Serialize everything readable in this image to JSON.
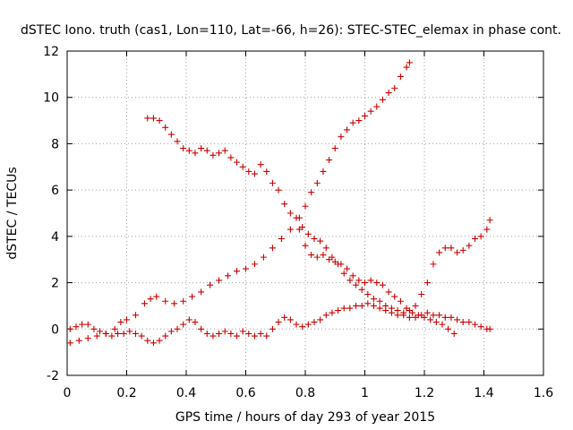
{
  "chart_data": {
    "type": "scatter",
    "title": "dSTEC Iono. truth (cas1, Lon=110, Lat=-66, h=26): STEC-STEC_elemax in phase cont.",
    "xlabel": "GPS time / hours of day 293 of year 2015",
    "ylabel": "dSTEC  / TECUs",
    "xlim": [
      0,
      1.6
    ],
    "ylim": [
      -2,
      12
    ],
    "xticks": [
      "0",
      "0.2",
      "0.4",
      "0.6",
      "0.8",
      "1",
      "1.2",
      "1.4",
      "1.6"
    ],
    "yticks": [
      "-2",
      "0",
      "2",
      "4",
      "6",
      "8",
      "10",
      "12"
    ],
    "grid": true,
    "marker": "plus",
    "color": "#cc0000",
    "series": [
      {
        "x": [
          0.01,
          0.04,
          0.07,
          0.1,
          0.13,
          0.16,
          0.18,
          0.2,
          0.23,
          0.26,
          0.28,
          0.3,
          0.33,
          0.36,
          0.39,
          0.42,
          0.45,
          0.48,
          0.51,
          0.54,
          0.57,
          0.6,
          0.63,
          0.66,
          0.69,
          0.72,
          0.75,
          0.78,
          0.8,
          0.82,
          0.84,
          0.86,
          0.88,
          0.9,
          0.92,
          0.94,
          0.96,
          0.98,
          1.0,
          1.02,
          1.04,
          1.06,
          1.08,
          1.1,
          1.12,
          1.14,
          1.15
        ],
        "y": [
          -0.6,
          -0.5,
          -0.4,
          -0.3,
          -0.2,
          0.0,
          0.3,
          0.4,
          0.6,
          1.1,
          1.3,
          1.4,
          1.2,
          1.1,
          1.2,
          1.4,
          1.6,
          1.9,
          2.1,
          2.3,
          2.5,
          2.6,
          2.8,
          3.1,
          3.5,
          3.9,
          4.3,
          4.8,
          5.3,
          5.9,
          6.3,
          6.8,
          7.3,
          7.8,
          8.3,
          8.6,
          8.9,
          9.0,
          9.2,
          9.4,
          9.6,
          9.9,
          10.2,
          10.4,
          10.9,
          11.3,
          11.5
        ]
      },
      {
        "x": [
          0.27,
          0.29,
          0.31,
          0.33,
          0.35,
          0.37,
          0.39,
          0.41,
          0.43,
          0.45,
          0.47,
          0.49,
          0.51,
          0.53,
          0.55,
          0.57,
          0.59,
          0.61,
          0.63,
          0.65,
          0.67,
          0.69,
          0.71,
          0.73,
          0.75,
          0.77,
          0.79,
          0.81,
          0.83,
          0.85,
          0.87,
          0.89,
          0.91,
          0.93,
          0.95,
          0.97,
          0.99,
          1.01,
          1.03,
          1.05,
          1.07,
          1.09,
          1.11,
          1.13,
          1.15,
          1.17,
          1.19,
          1.21,
          1.23,
          1.25,
          1.27,
          1.29,
          1.31,
          1.33,
          1.35,
          1.37,
          1.39,
          1.41,
          1.42
        ],
        "y": [
          9.1,
          9.1,
          9.0,
          8.7,
          8.4,
          8.1,
          7.8,
          7.7,
          7.6,
          7.8,
          7.7,
          7.5,
          7.6,
          7.7,
          7.4,
          7.2,
          7.0,
          6.8,
          6.7,
          7.1,
          6.8,
          6.3,
          6.0,
          5.4,
          5.0,
          4.8,
          4.4,
          4.1,
          3.9,
          3.8,
          3.5,
          3.1,
          2.8,
          2.4,
          2.1,
          1.9,
          1.7,
          1.5,
          1.3,
          1.2,
          1.0,
          0.9,
          0.8,
          0.6,
          0.5,
          0.5,
          0.6,
          0.7,
          0.6,
          0.6,
          0.5,
          0.5,
          0.4,
          0.3,
          0.3,
          0.2,
          0.1,
          0.0,
          0.0
        ]
      },
      {
        "x": [
          0.01,
          0.03,
          0.05,
          0.07,
          0.09,
          0.11,
          0.13,
          0.15,
          0.17,
          0.19,
          0.21,
          0.23,
          0.25,
          0.27,
          0.29,
          0.31,
          0.33,
          0.35,
          0.37,
          0.39,
          0.41,
          0.43,
          0.45,
          0.47,
          0.49,
          0.51,
          0.53,
          0.55,
          0.57,
          0.59,
          0.61,
          0.63,
          0.65,
          0.67,
          0.69,
          0.71,
          0.73,
          0.75,
          0.77,
          0.79,
          0.81,
          0.83,
          0.85,
          0.87,
          0.89,
          0.91,
          0.93,
          0.95,
          0.97,
          0.99,
          1.01,
          1.03,
          1.05,
          1.07,
          1.09,
          1.11,
          1.13,
          1.15,
          1.17,
          1.19,
          1.21,
          1.23,
          1.25,
          1.27,
          1.29,
          1.31,
          1.33,
          1.35,
          1.37,
          1.39,
          1.41,
          1.42
        ],
        "y": [
          0.0,
          0.1,
          0.2,
          0.2,
          0.0,
          -0.1,
          -0.2,
          -0.3,
          -0.2,
          -0.2,
          -0.1,
          -0.2,
          -0.3,
          -0.5,
          -0.6,
          -0.5,
          -0.3,
          -0.1,
          0.0,
          0.2,
          0.4,
          0.3,
          0.0,
          -0.2,
          -0.3,
          -0.2,
          -0.1,
          -0.2,
          -0.3,
          -0.1,
          -0.2,
          -0.3,
          -0.2,
          -0.3,
          0.0,
          0.3,
          0.5,
          0.4,
          0.2,
          0.1,
          0.2,
          0.3,
          0.4,
          0.6,
          0.7,
          0.8,
          0.9,
          0.9,
          1.0,
          1.0,
          1.1,
          1.0,
          0.9,
          0.8,
          0.7,
          0.6,
          0.7,
          0.8,
          1.0,
          1.5,
          2.0,
          2.8,
          3.3,
          3.5,
          3.5,
          3.3,
          3.4,
          3.6,
          3.9,
          4.0,
          4.3,
          4.7
        ]
      },
      {
        "x": [
          0.78,
          0.8,
          0.82,
          0.84,
          0.86,
          0.88,
          0.9,
          0.92,
          0.94,
          0.96,
          0.98,
          1.0,
          1.02,
          1.04,
          1.06,
          1.08,
          1.1,
          1.12,
          1.14,
          1.16,
          1.18,
          1.2,
          1.22,
          1.24,
          1.26,
          1.28,
          1.3
        ],
        "y": [
          4.3,
          3.6,
          3.2,
          3.1,
          3.2,
          3.0,
          2.9,
          2.8,
          2.6,
          2.3,
          2.1,
          2.0,
          2.1,
          2.0,
          1.9,
          1.6,
          1.4,
          1.2,
          0.9,
          0.7,
          0.6,
          0.5,
          0.4,
          0.3,
          0.2,
          0.0,
          -0.2
        ]
      }
    ]
  }
}
